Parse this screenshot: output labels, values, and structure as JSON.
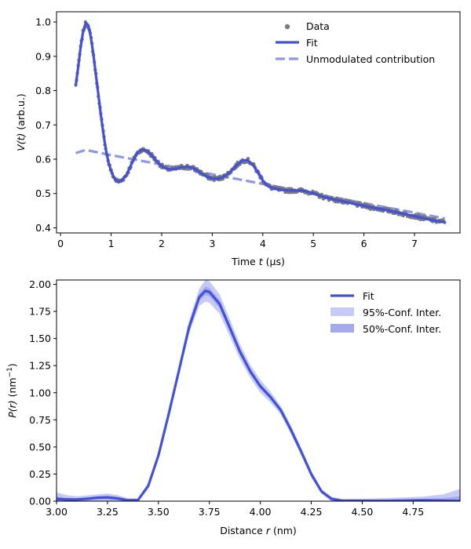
{
  "chart_data": [
    {
      "type": "scatter+line",
      "xlabel_prefix": "Time ",
      "xlabel_var": "t",
      "xlabel_suffix": " (µs)",
      "ylabel_var": "V(t)",
      "ylabel_suffix": " (arb.u.)",
      "xlim": [
        -0.08,
        7.9
      ],
      "ylim": [
        0.385,
        1.03
      ],
      "xticks": [
        0,
        1,
        2,
        3,
        4,
        5,
        6,
        7
      ],
      "xtick_labels": [
        "0",
        "1",
        "2",
        "3",
        "4",
        "5",
        "6",
        "7"
      ],
      "yticks": [
        0.4,
        0.5,
        0.6,
        0.7,
        0.8,
        0.9,
        1.0
      ],
      "ytick_labels": [
        "0.4",
        "0.5",
        "0.6",
        "0.7",
        "0.8",
        "0.9",
        "1.0"
      ],
      "legend_position": "upper-right",
      "legend": [
        "Data",
        "Fit",
        "Unmodulated contribution"
      ],
      "data_color": "#7a7a7a",
      "fit_color": "#4350d8",
      "unmod_color": "#8f98e6",
      "fit_points": [
        [
          0.3,
          0.815
        ],
        [
          0.35,
          0.87
        ],
        [
          0.4,
          0.93
        ],
        [
          0.45,
          0.975
        ],
        [
          0.5,
          0.998
        ],
        [
          0.55,
          0.99
        ],
        [
          0.6,
          0.955
        ],
        [
          0.65,
          0.905
        ],
        [
          0.7,
          0.845
        ],
        [
          0.75,
          0.785
        ],
        [
          0.8,
          0.725
        ],
        [
          0.85,
          0.672
        ],
        [
          0.9,
          0.625
        ],
        [
          0.95,
          0.59
        ],
        [
          1.0,
          0.565
        ],
        [
          1.05,
          0.548
        ],
        [
          1.1,
          0.538
        ],
        [
          1.15,
          0.535
        ],
        [
          1.2,
          0.537
        ],
        [
          1.3,
          0.553
        ],
        [
          1.4,
          0.585
        ],
        [
          1.5,
          0.615
        ],
        [
          1.6,
          0.628
        ],
        [
          1.7,
          0.625
        ],
        [
          1.8,
          0.612
        ],
        [
          1.9,
          0.595
        ],
        [
          2.0,
          0.58
        ],
        [
          2.1,
          0.572
        ],
        [
          2.2,
          0.57
        ],
        [
          2.3,
          0.573
        ],
        [
          2.4,
          0.577
        ],
        [
          2.5,
          0.578
        ],
        [
          2.6,
          0.575
        ],
        [
          2.7,
          0.568
        ],
        [
          2.8,
          0.558
        ],
        [
          2.9,
          0.549
        ],
        [
          3.0,
          0.544
        ],
        [
          3.1,
          0.543
        ],
        [
          3.2,
          0.547
        ],
        [
          3.3,
          0.556
        ],
        [
          3.4,
          0.57
        ],
        [
          3.5,
          0.585
        ],
        [
          3.6,
          0.596
        ],
        [
          3.7,
          0.597
        ],
        [
          3.8,
          0.585
        ],
        [
          3.9,
          0.562
        ],
        [
          4.0,
          0.538
        ],
        [
          4.1,
          0.522
        ],
        [
          4.2,
          0.515
        ],
        [
          4.3,
          0.512
        ],
        [
          4.4,
          0.51
        ],
        [
          4.5,
          0.509
        ],
        [
          4.6,
          0.509
        ],
        [
          4.7,
          0.509
        ],
        [
          4.8,
          0.508
        ],
        [
          4.9,
          0.505
        ],
        [
          5.0,
          0.5
        ],
        [
          5.2,
          0.49
        ],
        [
          5.4,
          0.483
        ],
        [
          5.6,
          0.477
        ],
        [
          5.8,
          0.47
        ],
        [
          6.0,
          0.464
        ],
        [
          6.2,
          0.458
        ],
        [
          6.4,
          0.453
        ],
        [
          6.6,
          0.447
        ],
        [
          6.8,
          0.44
        ],
        [
          7.0,
          0.434
        ],
        [
          7.2,
          0.427
        ],
        [
          7.4,
          0.421
        ],
        [
          7.6,
          0.416
        ]
      ],
      "unmodulated_points": [
        [
          0.3,
          0.618
        ],
        [
          0.5,
          0.627
        ],
        [
          1.0,
          0.612
        ],
        [
          2.0,
          0.584
        ],
        [
          3.0,
          0.556
        ],
        [
          4.0,
          0.528
        ],
        [
          5.0,
          0.5
        ],
        [
          6.0,
          0.472
        ],
        [
          7.0,
          0.444
        ],
        [
          7.6,
          0.427
        ]
      ]
    },
    {
      "type": "line+band",
      "xlabel_prefix": "Distance ",
      "xlabel_var": "r",
      "xlabel_suffix": " (nm)",
      "ylabel_var": "P(r)",
      "ylabel_suffix": " (nm",
      "ylabel_exp": "−1",
      "ylabel_close": ")",
      "xlim": [
        3.0,
        4.98
      ],
      "ylim": [
        0.0,
        2.04
      ],
      "xticks": [
        3.0,
        3.25,
        3.5,
        3.75,
        4.0,
        4.25,
        4.5,
        4.75
      ],
      "xtick_labels": [
        "3.00",
        "3.25",
        "3.50",
        "3.75",
        "4.00",
        "4.25",
        "4.50",
        "4.75"
      ],
      "yticks": [
        0.0,
        0.25,
        0.5,
        0.75,
        1.0,
        1.25,
        1.5,
        1.75,
        2.0
      ],
      "ytick_labels": [
        "0.00",
        "0.25",
        "0.50",
        "0.75",
        "1.00",
        "1.25",
        "1.50",
        "1.75",
        "2.00"
      ],
      "legend_position": "upper-right",
      "legend": [
        "Fit",
        "95%-Conf. Inter.",
        "50%-Conf. Inter."
      ],
      "fit_color": "#4350d8",
      "ci95_color": "#c5cbf4",
      "ci50_color": "#a3abee",
      "fit_points": [
        [
          3.0,
          0.02
        ],
        [
          3.05,
          0.015
        ],
        [
          3.1,
          0.015
        ],
        [
          3.15,
          0.022
        ],
        [
          3.2,
          0.032
        ],
        [
          3.25,
          0.035
        ],
        [
          3.3,
          0.025
        ],
        [
          3.35,
          0.008
        ],
        [
          3.4,
          0.01
        ],
        [
          3.45,
          0.14
        ],
        [
          3.5,
          0.42
        ],
        [
          3.55,
          0.8
        ],
        [
          3.6,
          1.2
        ],
        [
          3.65,
          1.6
        ],
        [
          3.7,
          1.88
        ],
        [
          3.73,
          1.94
        ],
        [
          3.75,
          1.93
        ],
        [
          3.8,
          1.82
        ],
        [
          3.85,
          1.6
        ],
        [
          3.9,
          1.38
        ],
        [
          3.95,
          1.2
        ],
        [
          4.0,
          1.06
        ],
        [
          4.05,
          0.96
        ],
        [
          4.1,
          0.84
        ],
        [
          4.15,
          0.66
        ],
        [
          4.2,
          0.46
        ],
        [
          4.25,
          0.25
        ],
        [
          4.3,
          0.09
        ],
        [
          4.35,
          0.02
        ],
        [
          4.4,
          0.005
        ],
        [
          4.5,
          0.003
        ],
        [
          4.6,
          0.003
        ],
        [
          4.7,
          0.005
        ],
        [
          4.8,
          0.008
        ],
        [
          4.9,
          0.004
        ],
        [
          4.98,
          0.002
        ]
      ],
      "ci95_width": [
        0.06,
        0.04,
        0.03,
        0.03,
        0.03,
        0.035,
        0.03,
        0.02,
        0.015,
        0.025,
        0.03,
        0.035,
        0.04,
        0.06,
        0.08,
        0.1,
        0.1,
        0.09,
        0.08,
        0.07,
        0.06,
        0.06,
        0.05,
        0.04,
        0.04,
        0.035,
        0.03,
        0.02,
        0.02,
        0.015,
        0.02,
        0.025,
        0.03,
        0.035,
        0.06,
        0.11
      ],
      "ci50_width": [
        0.025,
        0.015,
        0.012,
        0.012,
        0.012,
        0.015,
        0.012,
        0.008,
        0.006,
        0.01,
        0.012,
        0.014,
        0.016,
        0.024,
        0.032,
        0.04,
        0.04,
        0.036,
        0.032,
        0.028,
        0.024,
        0.024,
        0.02,
        0.016,
        0.016,
        0.014,
        0.012,
        0.008,
        0.008,
        0.006,
        0.008,
        0.01,
        0.012,
        0.014,
        0.024,
        0.045
      ]
    }
  ]
}
